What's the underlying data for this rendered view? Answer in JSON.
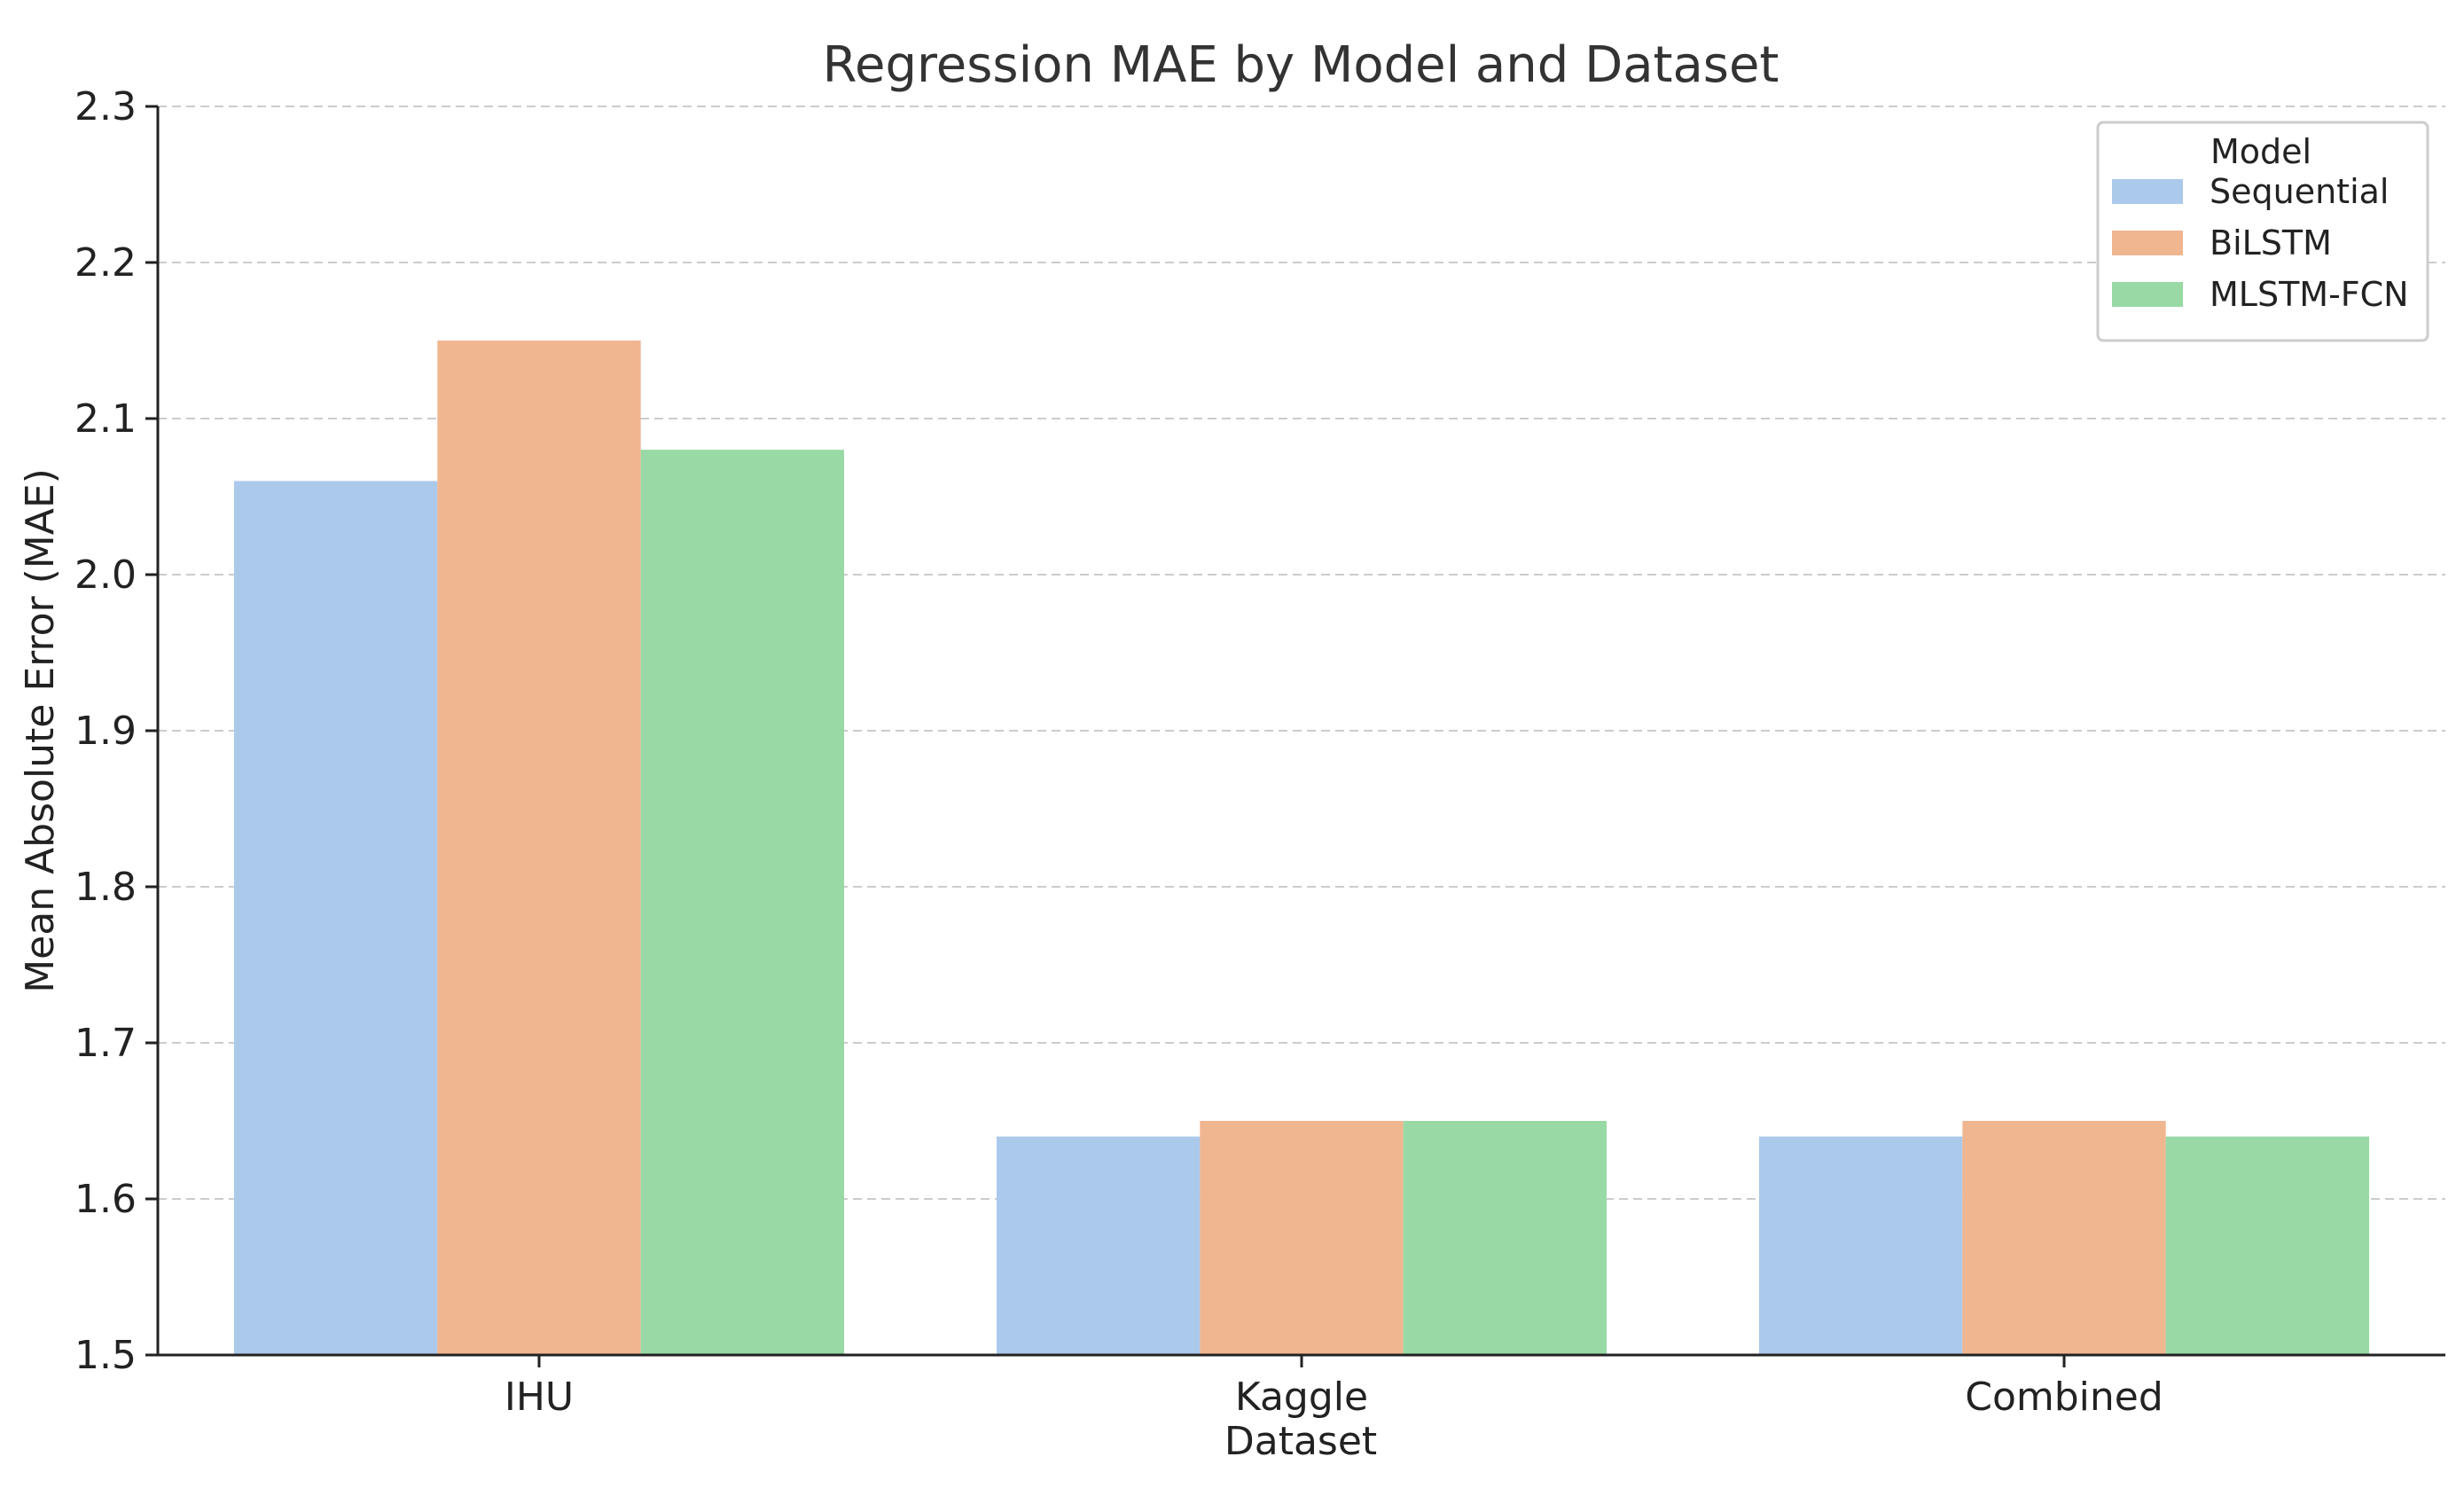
{
  "chart_data": {
    "type": "bar",
    "title": "Regression MAE by Model and Dataset",
    "xlabel": "Dataset",
    "ylabel": "Mean Absolute Error (MAE)",
    "categories": [
      "IHU",
      "Kaggle",
      "Combined"
    ],
    "series": [
      {
        "name": "Sequential",
        "color": "#abc9eb",
        "values": [
          2.06,
          1.64,
          1.64
        ]
      },
      {
        "name": "BiLSTM",
        "color": "#f0b690",
        "values": [
          2.15,
          1.65,
          1.65
        ]
      },
      {
        "name": "MLSTM-FCN",
        "color": "#98d9a5",
        "values": [
          2.08,
          1.65,
          1.64
        ]
      }
    ],
    "ylim": [
      1.5,
      2.3
    ],
    "yticks": [
      "1.5",
      "1.6",
      "1.7",
      "1.8",
      "1.9",
      "2.0",
      "2.1",
      "2.2",
      "2.3"
    ],
    "grid": true,
    "legend": {
      "title": "Model",
      "placement": "top-right"
    }
  }
}
